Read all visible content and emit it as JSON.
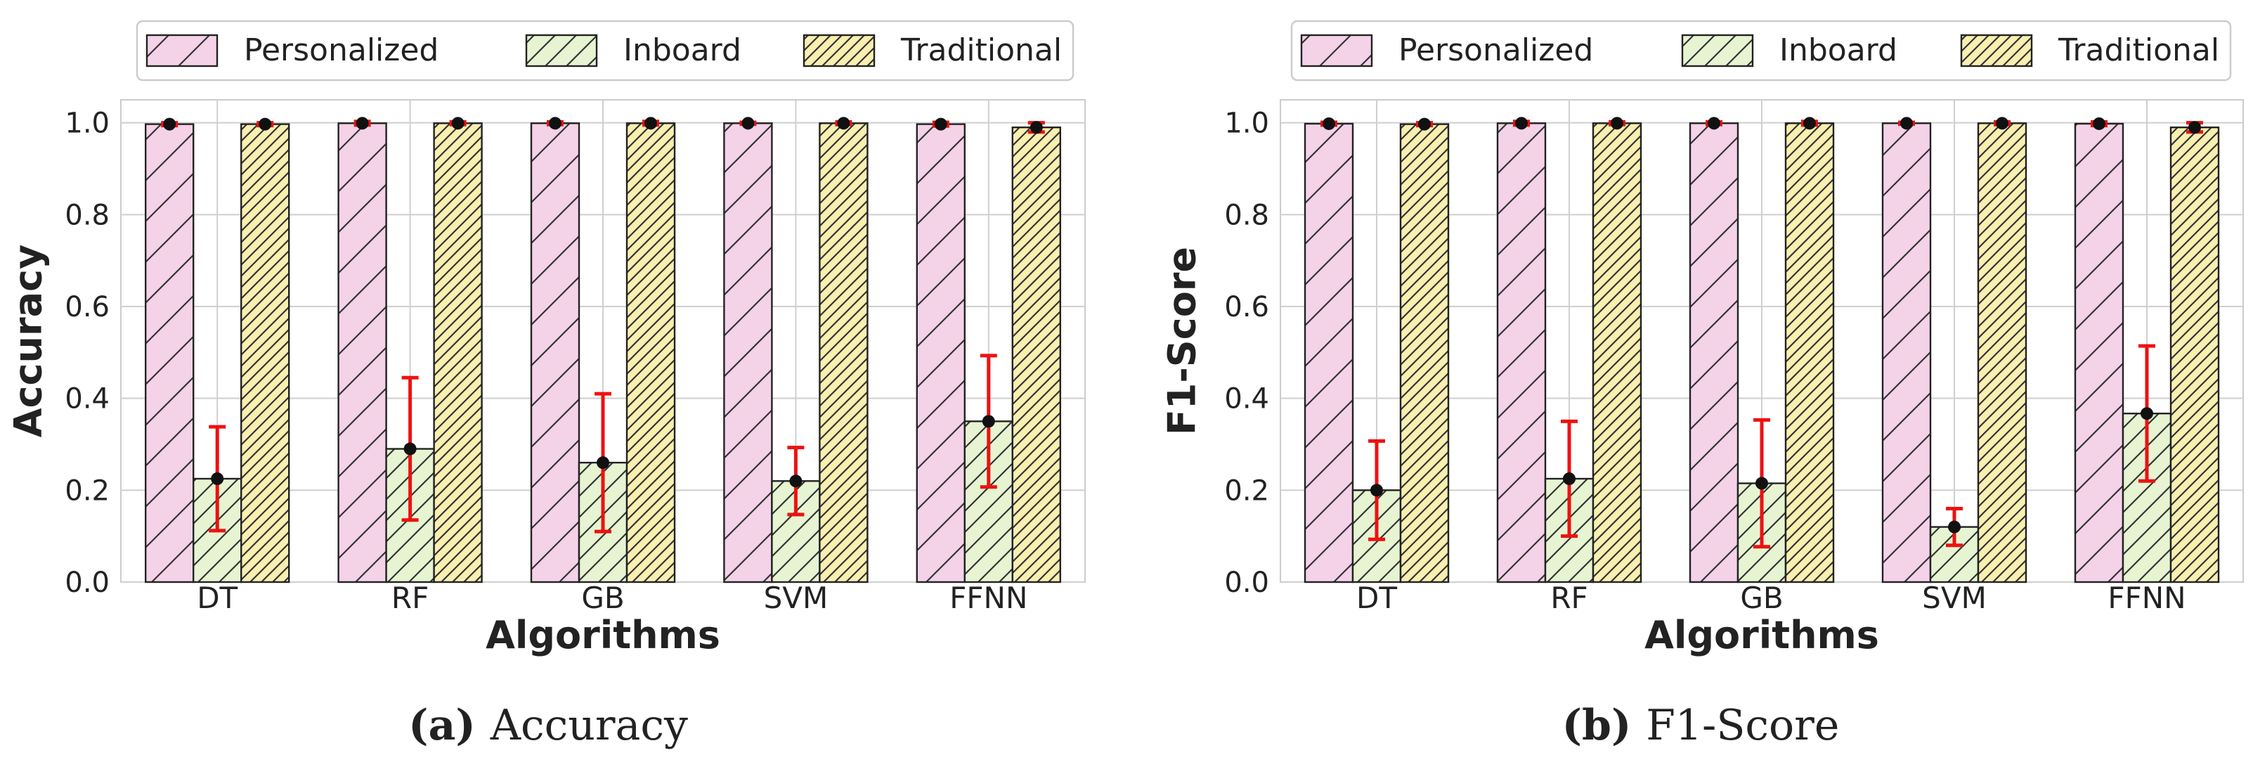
{
  "chart_data": [
    {
      "type": "bar",
      "panel_label": "(a)",
      "caption": "Accuracy",
      "xlabel": "Algorithms",
      "ylabel": "Accuracy",
      "ylim": [
        0,
        1.05
      ],
      "yticks": [
        "0.0",
        "0.2",
        "0.4",
        "0.6",
        "0.8",
        "1.0"
      ],
      "ytick_values": [
        0,
        0.2,
        0.4,
        0.6,
        0.8,
        1.0
      ],
      "grid": true,
      "legend": "top",
      "categories": [
        "DT",
        "RF",
        "GB",
        "SVM",
        "FFNN"
      ],
      "series": [
        {
          "name": "Personalized",
          "color": "#f4d2e8",
          "hatch": "wide",
          "values": [
            0.997,
            0.999,
            0.999,
            0.999,
            0.997
          ],
          "err": [
            0.003,
            0.004,
            0.003,
            0.002,
            0.004
          ]
        },
        {
          "name": "Inboard",
          "color": "#e6f4d2",
          "hatch": "medium",
          "values": [
            0.225,
            0.29,
            0.26,
            0.22,
            0.35
          ],
          "err": [
            0.113,
            0.155,
            0.15,
            0.073,
            0.143
          ]
        },
        {
          "name": "Traditional",
          "color": "#f8efb0",
          "hatch": "dense",
          "values": [
            0.997,
            0.999,
            0.999,
            0.999,
            0.99
          ],
          "err": [
            0.003,
            0.003,
            0.004,
            0.003,
            0.01
          ]
        }
      ]
    },
    {
      "type": "bar",
      "panel_label": "(b)",
      "caption": "F1-Score",
      "xlabel": "Algorithms",
      "ylabel": "F1-Score",
      "ylim": [
        0,
        1.05
      ],
      "yticks": [
        "0.0",
        "0.2",
        "0.4",
        "0.6",
        "0.8",
        "1.0"
      ],
      "ytick_values": [
        0,
        0.2,
        0.4,
        0.6,
        0.8,
        1.0
      ],
      "grid": true,
      "legend": "top",
      "categories": [
        "DT",
        "RF",
        "GB",
        "SVM",
        "FFNN"
      ],
      "series": [
        {
          "name": "Personalized",
          "color": "#f4d2e8",
          "hatch": "wide",
          "values": [
            0.998,
            0.999,
            0.999,
            0.999,
            0.998
          ],
          "err": [
            0.003,
            0.004,
            0.003,
            0.002,
            0.004
          ]
        },
        {
          "name": "Inboard",
          "color": "#e6f4d2",
          "hatch": "medium",
          "values": [
            0.2,
            0.225,
            0.215,
            0.12,
            0.367
          ],
          "err": [
            0.107,
            0.125,
            0.138,
            0.04,
            0.147
          ]
        },
        {
          "name": "Traditional",
          "color": "#f8efb0",
          "hatch": "dense",
          "values": [
            0.997,
            0.999,
            0.999,
            0.999,
            0.99
          ],
          "err": [
            0.003,
            0.003,
            0.004,
            0.003,
            0.01
          ]
        }
      ]
    }
  ]
}
